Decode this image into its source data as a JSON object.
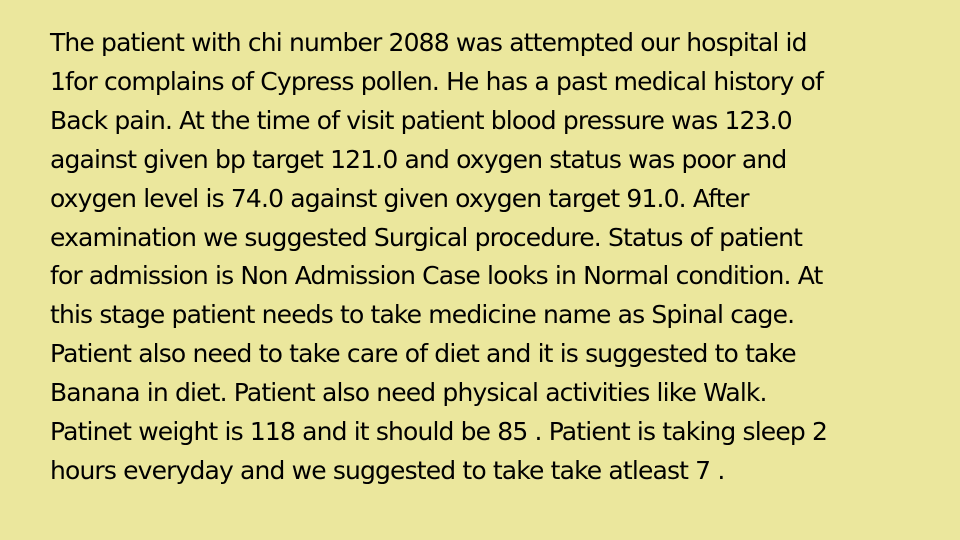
{
  "document": {
    "lines": [
      "The patient with chi number 2088 was attempted our hospital id",
      "1for complains of Cypress pollen. He has a past medical history of",
      "Back pain. At the time of visit patient blood pressure was 123.0",
      "against given bp target 121.0 and oxygen status was poor and",
      "oxygen level is 74.0 against given oxygen target 91.0. After",
      "examination we suggested Surgical procedure. Status of patient",
      "for admission is Non Admission Case looks in Normal condition. At",
      "this stage patient needs to take medicine name as Spinal cage.",
      "Patient also need to take care of diet and it is suggested to take",
      "Banana in diet. Patient also need physical activities like Walk.",
      "Patinet weight is 118 and it should be 85 . Patient is taking sleep 2",
      "hours everyday and we suggested to take take atleast 7 ."
    ]
  }
}
